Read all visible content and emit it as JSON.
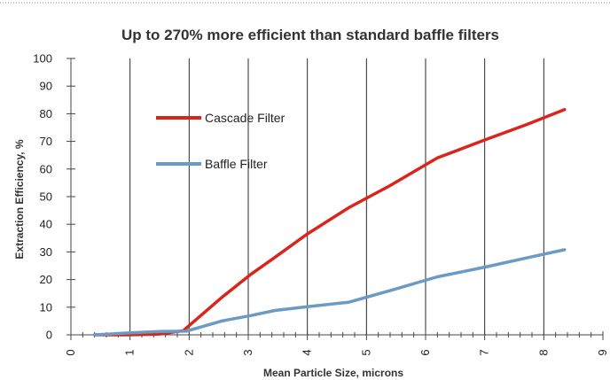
{
  "chart_data": {
    "type": "line",
    "title": "Up to 270% more efficient than standard baffle filters",
    "xlabel": "Mean Particle Size, microns",
    "ylabel": "Extraction Efficiency, %",
    "xlim": [
      0,
      9
    ],
    "ylim": [
      0,
      100
    ],
    "x_ticks": [
      "0",
      "1",
      "2",
      "3",
      "4",
      "5",
      "6",
      "7",
      "8",
      "9"
    ],
    "y_ticks": [
      "0",
      "10",
      "20",
      "30",
      "40",
      "50",
      "60",
      "70",
      "80",
      "90",
      "100"
    ],
    "grid": "vertical",
    "legend_position": "upper-left inside",
    "series": [
      {
        "name": "Cascade Filter",
        "color": "#d9261c",
        "x": [
          0.4,
          1.0,
          1.5,
          1.9,
          2.55,
          3.05,
          3.45,
          4.0,
          4.7,
          5.4,
          6.2,
          7.0,
          7.7,
          8.35
        ],
        "y": [
          0,
          0,
          0.3,
          1.5,
          13.5,
          22,
          28,
          36.5,
          46,
          54,
          64,
          70.5,
          76,
          81.5
        ]
      },
      {
        "name": "Baffle Filter",
        "color": "#6b9ac4",
        "x": [
          0.4,
          1.0,
          1.5,
          1.95,
          2.55,
          3.05,
          3.45,
          4.0,
          4.7,
          5.4,
          6.2,
          7.0,
          7.7,
          8.35
        ],
        "y": [
          0,
          0.7,
          1.2,
          1.3,
          5.0,
          7.0,
          8.8,
          10.2,
          11.8,
          16,
          21,
          24.5,
          27.8,
          30.8
        ]
      }
    ]
  }
}
